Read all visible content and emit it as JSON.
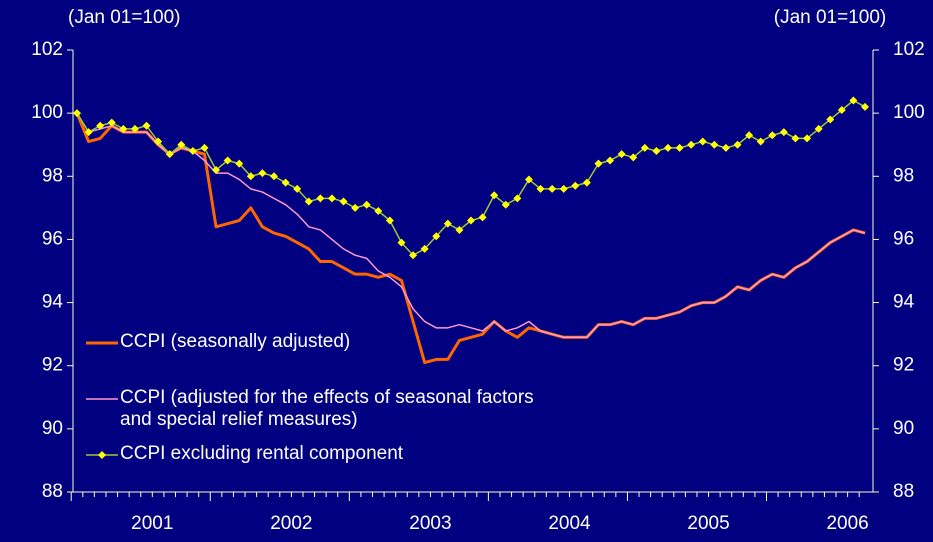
{
  "chart_data": {
    "type": "line",
    "y_label": "(Jan 01=100)",
    "y2_label": "(Jan 01=100)",
    "categories": [
      null,
      null,
      null,
      null,
      null,
      null,
      "2001",
      null,
      null,
      null,
      null,
      null,
      null,
      null,
      null,
      null,
      null,
      null,
      "2002",
      null,
      null,
      null,
      null,
      null,
      null,
      null,
      null,
      null,
      null,
      null,
      "2003",
      null,
      null,
      null,
      null,
      null,
      null,
      null,
      null,
      null,
      null,
      null,
      "2004",
      null,
      null,
      null,
      null,
      null,
      null,
      null,
      null,
      null,
      null,
      null,
      "2005",
      null,
      null,
      null,
      null,
      null,
      null,
      null,
      null,
      null,
      null,
      null,
      "2006",
      null,
      null
    ],
    "ylim": [
      88,
      102
    ],
    "yticks": [
      88,
      90,
      92,
      94,
      96,
      98,
      100,
      102
    ],
    "y2lim": [
      88,
      102
    ],
    "y2ticks": [
      88,
      90,
      92,
      94,
      96,
      98,
      100,
      102
    ],
    "legend": "lower-left",
    "series": [
      {
        "name": "CCPI (seasonally adjusted)",
        "color": "#ff6600",
        "width": 3,
        "values": [
          100,
          99.1,
          99.2,
          99.6,
          99.4,
          99.4,
          99.4,
          99.0,
          98.7,
          98.9,
          98.8,
          98.7,
          96.4,
          96.5,
          96.6,
          97.0,
          96.4,
          96.2,
          96.1,
          95.9,
          95.7,
          95.3,
          95.3,
          95.1,
          94.9,
          94.9,
          94.8,
          94.9,
          94.7,
          93.4,
          92.1,
          92.2,
          92.2,
          92.8,
          92.9,
          93.0,
          93.4,
          93.1,
          92.9,
          93.2,
          93.1,
          93.0,
          92.9,
          92.9,
          92.9,
          93.3,
          93.3,
          93.4,
          93.3,
          93.5,
          93.5,
          93.6,
          93.7,
          93.9,
          94.0,
          94.0,
          94.2,
          94.5,
          94.4,
          94.7,
          94.9,
          94.8,
          95.1,
          95.3,
          95.6,
          95.9,
          96.1,
          96.3,
          96.2
        ]
      },
      {
        "name": "CCPI (adjusted for the effects of seasonal factors and special relief measures)",
        "color": "#ff99cc",
        "width": 1.5,
        "values": [
          100,
          99.4,
          99.5,
          99.6,
          99.4,
          99.4,
          99.4,
          99.0,
          98.7,
          98.9,
          98.8,
          98.5,
          98.1,
          98.1,
          97.9,
          97.6,
          97.5,
          97.3,
          97.1,
          96.8,
          96.4,
          96.3,
          96.0,
          95.7,
          95.5,
          95.4,
          95.0,
          94.8,
          94.5,
          93.8,
          93.4,
          93.2,
          93.2,
          93.3,
          93.2,
          93.1,
          93.4,
          93.1,
          93.2,
          93.4,
          93.1,
          93.0,
          92.9,
          92.9,
          92.9,
          93.3,
          93.3,
          93.4,
          93.3,
          93.5,
          93.5,
          93.6,
          93.7,
          93.9,
          94.0,
          94.0,
          94.2,
          94.5,
          94.4,
          94.7,
          94.9,
          94.8,
          95.1,
          95.3,
          95.6,
          95.9,
          96.1,
          96.3,
          96.2
        ]
      },
      {
        "name": "CCPI excluding rental component",
        "color": "#99cc33",
        "marker_color": "#ffff00",
        "marker": "diamond",
        "width": 1.5,
        "values": [
          100,
          99.4,
          99.6,
          99.7,
          99.5,
          99.5,
          99.6,
          99.1,
          98.7,
          99.0,
          98.8,
          98.9,
          98.2,
          98.5,
          98.4,
          98.0,
          98.1,
          98.0,
          97.8,
          97.6,
          97.2,
          97.3,
          97.3,
          97.2,
          97.0,
          97.1,
          96.9,
          96.6,
          95.9,
          95.5,
          95.7,
          96.1,
          96.5,
          96.3,
          96.6,
          96.7,
          97.4,
          97.1,
          97.3,
          97.9,
          97.6,
          97.6,
          97.6,
          97.7,
          97.8,
          98.4,
          98.5,
          98.7,
          98.6,
          98.9,
          98.8,
          98.9,
          98.9,
          99.0,
          99.1,
          99.0,
          98.9,
          99.0,
          99.3,
          99.1,
          99.3,
          99.4,
          99.2,
          99.2,
          99.5,
          99.8,
          100.1,
          100.4,
          100.2
        ]
      }
    ]
  }
}
